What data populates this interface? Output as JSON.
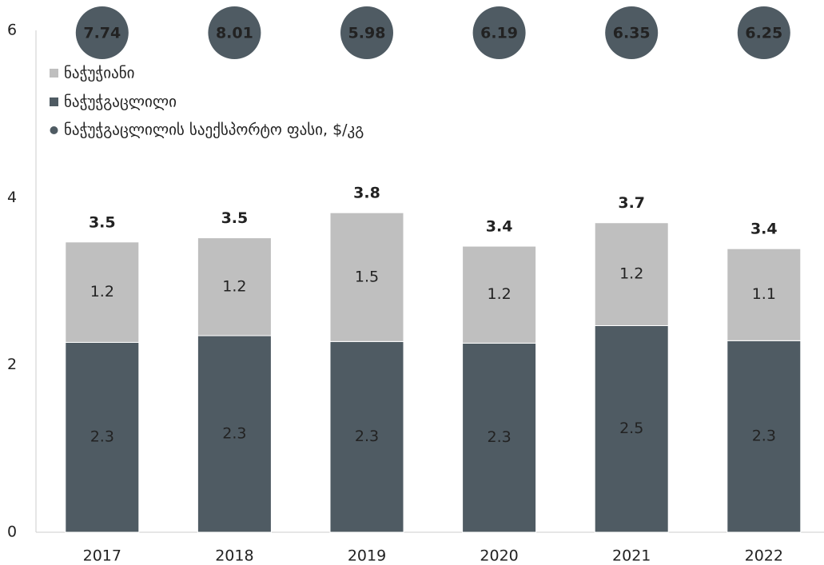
{
  "chart_data": {
    "type": "bar",
    "stacked": true,
    "categories": [
      "2017",
      "2018",
      "2019",
      "2020",
      "2021",
      "2022"
    ],
    "series": [
      {
        "name": "ნაჭუჭგაცლილი",
        "color": "#4f5b63",
        "values": [
          2.27,
          2.35,
          2.28,
          2.26,
          2.47,
          2.29
        ],
        "value_labels": [
          "2.3",
          "2.3",
          "2.3",
          "2.3",
          "2.5",
          "2.3"
        ]
      },
      {
        "name": "ნაჭუჭიანი",
        "color": "#bfbfbf",
        "values": [
          1.2,
          1.17,
          1.54,
          1.16,
          1.23,
          1.1
        ],
        "value_labels": [
          "1.2",
          "1.2",
          "1.5",
          "1.2",
          "1.2",
          "1.1"
        ]
      }
    ],
    "totals": [
      3.5,
      3.5,
      3.8,
      3.4,
      3.7,
      3.4
    ],
    "price": {
      "name": "ნაჭუჭგაცლილის საექსპორტო ფასი, $/კგ",
      "color": "#4f5b63",
      "values": [
        7.74,
        8.01,
        5.98,
        6.19,
        6.35,
        6.25
      ]
    },
    "ylim": [
      0,
      6
    ],
    "yticks": [
      0,
      2,
      4,
      6
    ],
    "grid": false
  }
}
